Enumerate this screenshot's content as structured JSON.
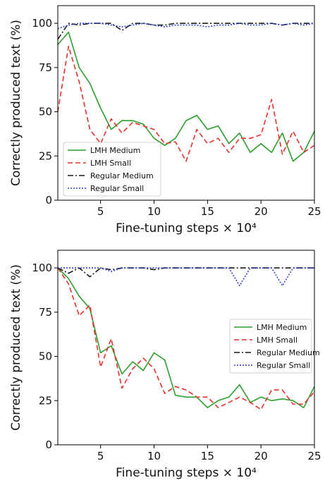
{
  "chart_data": [
    {
      "type": "line",
      "xlabel": "Fine-tuning steps × 10⁴",
      "ylabel": "Correctly produced text (%)",
      "xlim": [
        1,
        25
      ],
      "ylim": [
        0,
        110
      ],
      "xticks": [
        5,
        10,
        15,
        20,
        25
      ],
      "yticks": [
        0,
        25,
        50,
        75,
        100
      ],
      "grid": false,
      "legend_position": "lower-left",
      "x": [
        1,
        2,
        3,
        4,
        5,
        6,
        7,
        8,
        9,
        10,
        11,
        12,
        13,
        14,
        15,
        16,
        17,
        18,
        19,
        20,
        21,
        22,
        23,
        24,
        25
      ],
      "series": [
        {
          "name": "LMH Medium",
          "color": "#2ca02c",
          "style": "solid",
          "values": [
            88,
            95,
            75,
            66,
            52,
            40,
            45,
            45,
            43,
            35,
            31,
            35,
            45,
            48,
            40,
            42,
            32,
            38,
            27,
            32,
            27,
            38,
            22,
            27,
            39
          ]
        },
        {
          "name": "LMH Small",
          "color": "#e8302c",
          "style": "dashed",
          "values": [
            50,
            87,
            67,
            40,
            32,
            46,
            38,
            44,
            42,
            40,
            32,
            33,
            22,
            40,
            32,
            35,
            27,
            35,
            35,
            37,
            57,
            26,
            39,
            27,
            31
          ]
        },
        {
          "name": "Regular Medium",
          "color": "#1a1a1a",
          "style": "dashdot",
          "values": [
            91,
            100,
            99,
            100,
            100,
            100,
            96,
            100,
            100,
            99,
            99,
            100,
            100,
            100,
            100,
            100,
            100,
            100,
            100,
            100,
            100,
            99,
            100,
            100,
            100
          ]
        },
        {
          "name": "Regular Small",
          "color": "#3344dd",
          "style": "dotted",
          "values": [
            97,
            99,
            100,
            100,
            100,
            99,
            98,
            99,
            100,
            99,
            98,
            99,
            99,
            99,
            98,
            99,
            99,
            100,
            99,
            99,
            100,
            99,
            100,
            99,
            100
          ]
        }
      ]
    },
    {
      "type": "line",
      "xlabel": "Fine-tuning steps × 10⁴",
      "ylabel": "Correctly produced text (%)",
      "xlim": [
        1,
        25
      ],
      "ylim": [
        0,
        110
      ],
      "xticks": [
        5,
        10,
        15,
        20,
        25
      ],
      "yticks": [
        0,
        25,
        50,
        75,
        100
      ],
      "grid": false,
      "legend_position": "center-right",
      "x": [
        1,
        2,
        3,
        4,
        5,
        6,
        7,
        8,
        9,
        10,
        11,
        12,
        13,
        14,
        15,
        16,
        17,
        18,
        19,
        20,
        21,
        22,
        23,
        24,
        25
      ],
      "series": [
        {
          "name": "LMH Medium",
          "color": "#2ca02c",
          "style": "solid",
          "values": [
            100,
            94,
            84,
            77,
            52,
            56,
            40,
            47,
            42,
            52,
            48,
            28,
            27,
            27,
            21,
            25,
            27,
            34,
            24,
            27,
            25,
            26,
            25,
            21,
            33
          ]
        },
        {
          "name": "LMH Small",
          "color": "#e8302c",
          "style": "dashed",
          "values": [
            100,
            91,
            73,
            79,
            44,
            60,
            32,
            43,
            49,
            43,
            29,
            33,
            31,
            27,
            27,
            21,
            24,
            27,
            24,
            20,
            31,
            31,
            23,
            23,
            30
          ]
        },
        {
          "name": "Regular Medium",
          "color": "#1a1a1a",
          "style": "dashdot",
          "values": [
            100,
            97,
            100,
            95,
            100,
            99,
            100,
            100,
            100,
            99,
            100,
            100,
            100,
            100,
            100,
            100,
            100,
            100,
            100,
            100,
            100,
            100,
            100,
            100,
            100
          ]
        },
        {
          "name": "Regular Small",
          "color": "#3344dd",
          "style": "dotted",
          "values": [
            100,
            100,
            100,
            100,
            100,
            98,
            100,
            100,
            100,
            100,
            100,
            100,
            100,
            100,
            100,
            100,
            100,
            90,
            100,
            100,
            100,
            90,
            100,
            100,
            100
          ]
        }
      ]
    }
  ]
}
